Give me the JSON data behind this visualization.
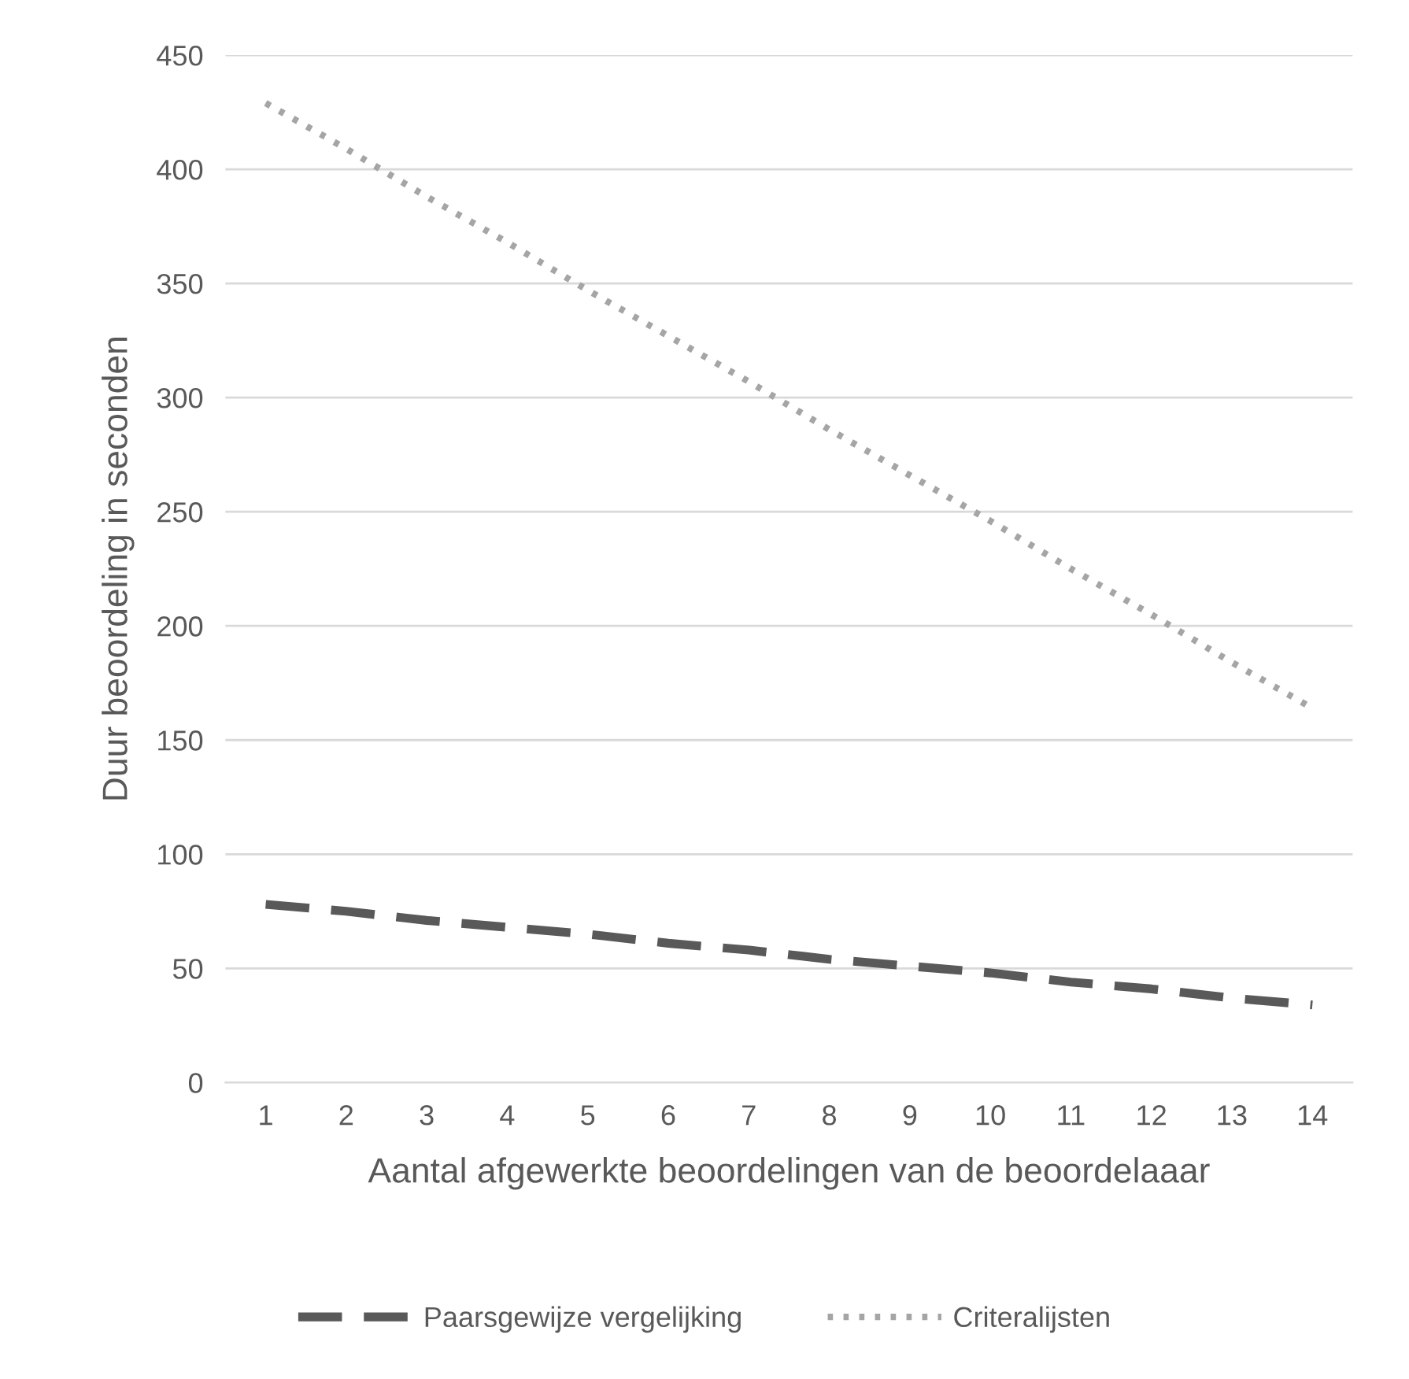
{
  "chart_data": {
    "type": "line",
    "xlabel": "Aantal afgewerkte beoordelingen van de beoordelaaar",
    "ylabel": "Duur beoordeling in seconden",
    "categories": [
      "1",
      "2",
      "3",
      "4",
      "5",
      "6",
      "7",
      "8",
      "9",
      "10",
      "11",
      "12",
      "13",
      "14"
    ],
    "series": [
      {
        "name": "Paarsgewijze vergelijking",
        "color": "#595959",
        "line_style": "dashed",
        "values": [
          78,
          75,
          71,
          68,
          65,
          61,
          58,
          54,
          51,
          48,
          44,
          41,
          37,
          34
        ]
      },
      {
        "name": "Criteralijsten",
        "color": "#a5a5a5",
        "line_style": "dotted",
        "values": [
          429,
          409,
          388,
          368,
          347,
          327,
          307,
          286,
          266,
          246,
          225,
          205,
          184,
          164
        ]
      }
    ],
    "ylim": [
      0,
      450
    ],
    "yticks": [
      0,
      50,
      100,
      150,
      200,
      250,
      300,
      350,
      400,
      450
    ],
    "grid": "y",
    "legend": "bottom",
    "marker": "none"
  }
}
